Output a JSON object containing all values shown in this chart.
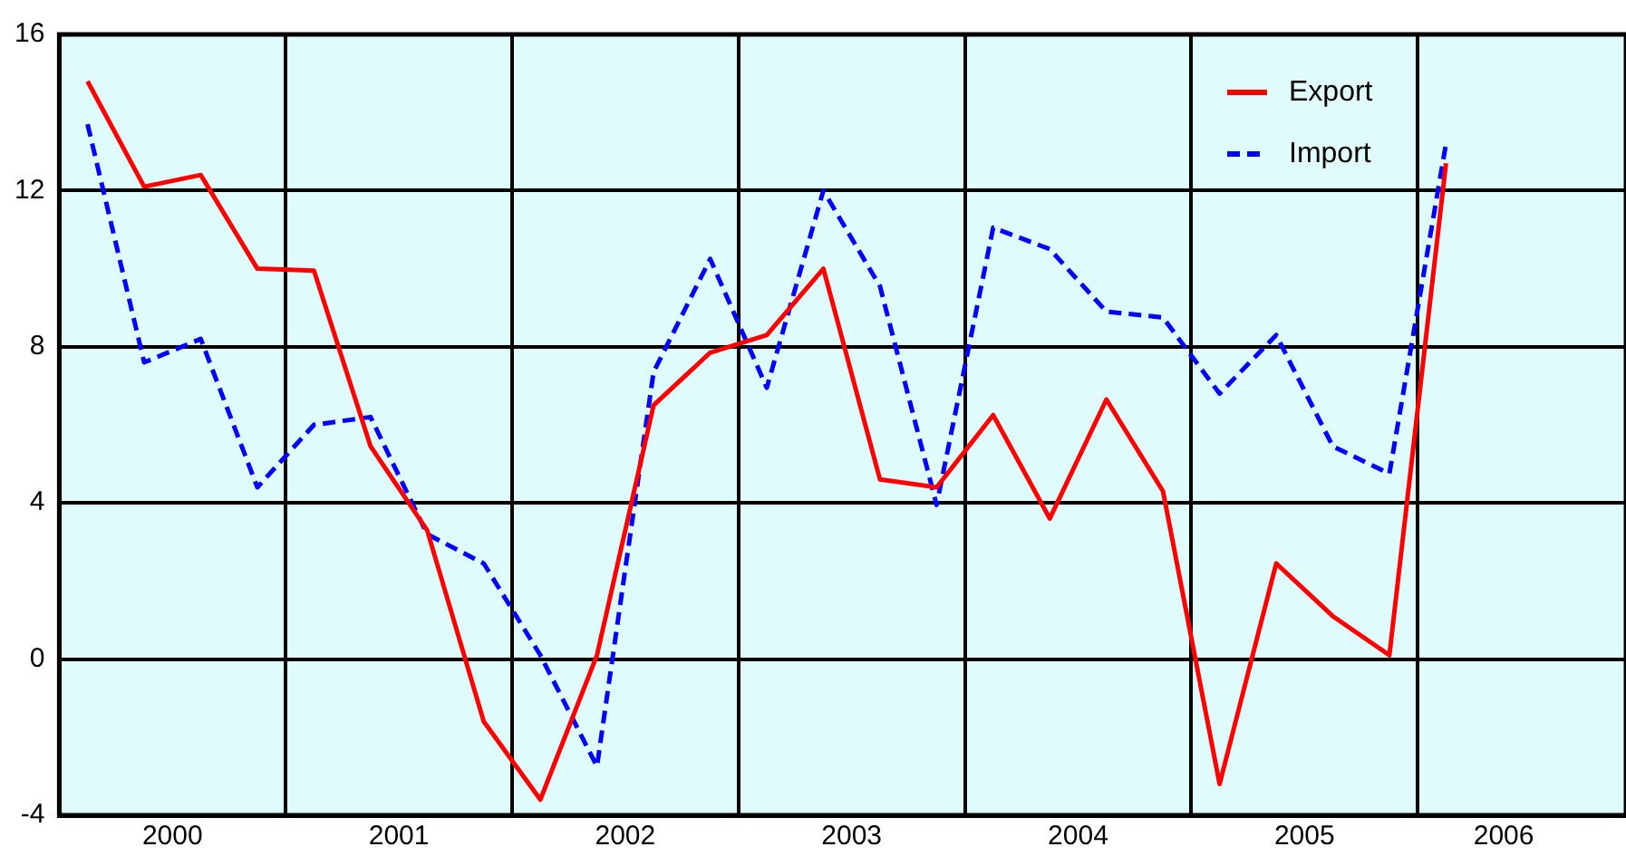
{
  "chart_data": {
    "type": "line",
    "x": [
      2000.125,
      2000.375,
      2000.625,
      2000.875,
      2001.125,
      2001.375,
      2001.625,
      2001.875,
      2002.125,
      2002.375,
      2002.625,
      2002.875,
      2003.125,
      2003.375,
      2003.625,
      2003.875,
      2004.125,
      2004.375,
      2004.625,
      2004.875,
      2005.125,
      2005.375,
      2005.625,
      2005.875,
      2006.125
    ],
    "series": [
      {
        "name": "Export",
        "color": "#ff0000",
        "line_style": "solid",
        "values": [
          14.8,
          12.1,
          12.4,
          10.0,
          9.95,
          5.45,
          3.3,
          -1.6,
          -3.6,
          0.1,
          6.5,
          7.85,
          8.3,
          10.0,
          4.6,
          4.4,
          6.25,
          3.6,
          6.65,
          4.3,
          -3.2,
          2.45,
          1.1,
          0.1,
          12.7
        ]
      },
      {
        "name": "Import",
        "color": "#0000ff",
        "line_style": "dashed",
        "values": [
          13.7,
          7.6,
          8.2,
          4.4,
          6.0,
          6.2,
          3.2,
          2.45,
          0.1,
          -2.75,
          7.35,
          10.25,
          6.95,
          12.0,
          9.55,
          3.95,
          11.05,
          10.5,
          8.9,
          8.75,
          6.8,
          8.3,
          5.45,
          4.75,
          13.2
        ]
      }
    ],
    "xlim": [
      2000,
      2006.92
    ],
    "xticks": [
      {
        "value": 2000,
        "label": null
      },
      {
        "value": 2000.5,
        "label": "2000"
      },
      {
        "value": 2001,
        "label": null
      },
      {
        "value": 2001.5,
        "label": "2001"
      },
      {
        "value": 2002,
        "label": null
      },
      {
        "value": 2002.5,
        "label": "2002"
      },
      {
        "value": 2003,
        "label": null
      },
      {
        "value": 2003.5,
        "label": "2003"
      },
      {
        "value": 2004,
        "label": null
      },
      {
        "value": 2004.5,
        "label": "2004"
      },
      {
        "value": 2005,
        "label": null
      },
      {
        "value": 2005.5,
        "label": "2005"
      },
      {
        "value": 2006,
        "label": null
      },
      {
        "value": 2006.38,
        "label": "2006"
      }
    ],
    "ylim": [
      -4,
      16
    ],
    "yticks": [
      -4,
      0,
      4,
      8,
      12,
      16
    ],
    "grid": true,
    "legend": "top right",
    "marker": "none"
  }
}
